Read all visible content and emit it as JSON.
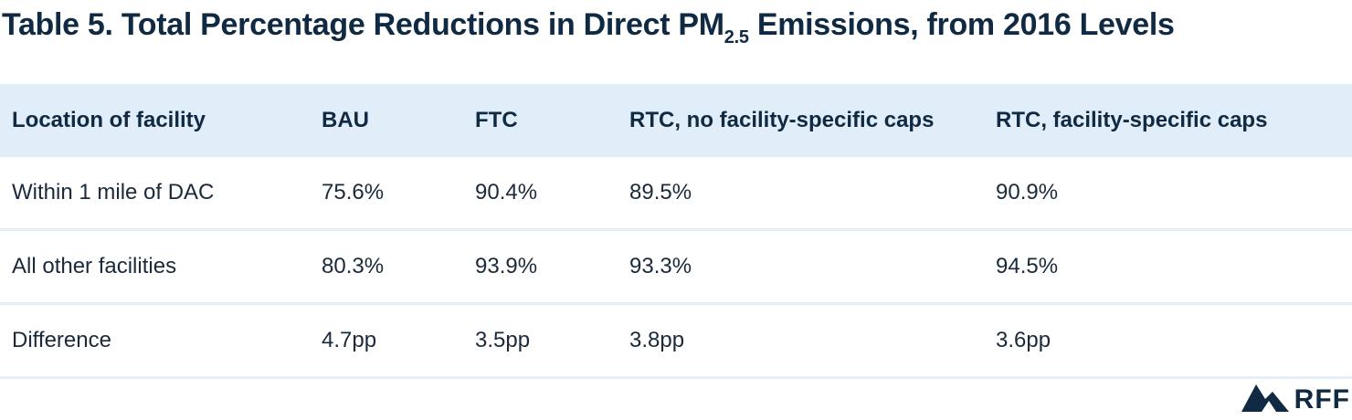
{
  "title": {
    "main": "Table 5.  Total Percentage Reductions in Direct PM",
    "subscript": "2.5",
    "suffix": " Emissions, from 2016 Levels"
  },
  "table": {
    "headers": [
      "Location of facility",
      "BAU",
      "FTC",
      "RTC, no facility-specific caps",
      "RTC, facility-specific caps"
    ],
    "rows": [
      [
        "Within 1 mile of DAC",
        "75.6%",
        "90.4%",
        "89.5%",
        "90.9%"
      ],
      [
        "All other facilities",
        "80.3%",
        "93.9%",
        "93.3%",
        "94.5%"
      ],
      [
        "Difference",
        "4.7pp",
        "3.5pp",
        "3.8pp",
        "3.6pp"
      ]
    ]
  },
  "brand": {
    "logo_icon": "rff-mountain-icon",
    "text": "RFF",
    "color": "#0f2a42"
  },
  "colors": {
    "header_bg": "#e1edf8",
    "row_divider": "#e6eef7",
    "text": "#1b2a3a"
  }
}
